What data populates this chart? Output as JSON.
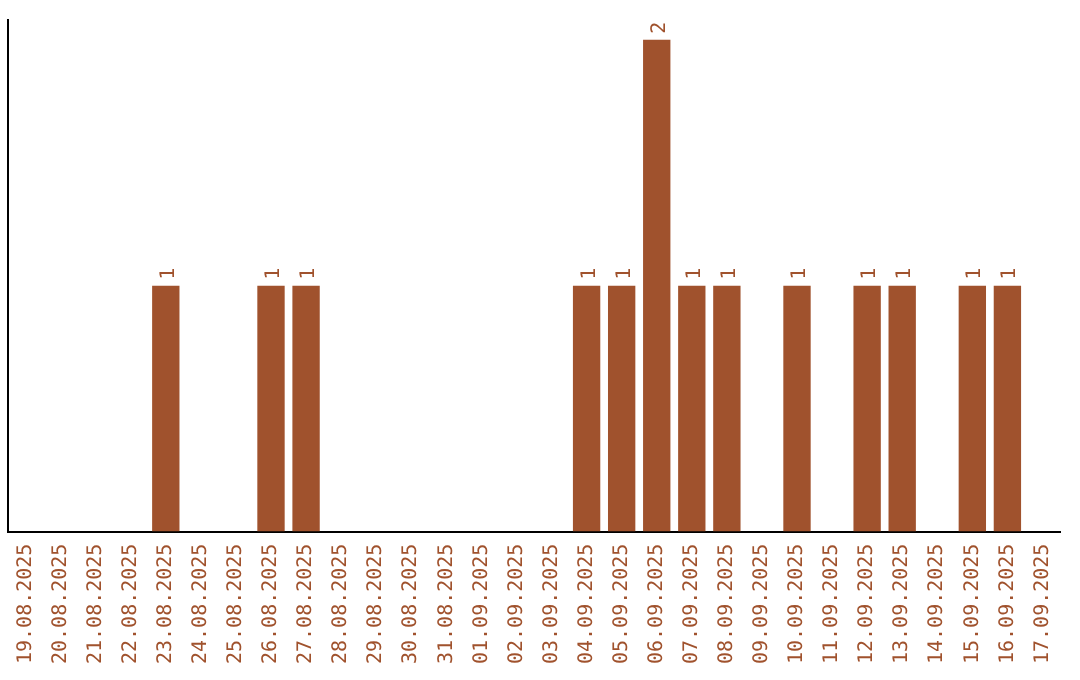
{
  "chart_data": {
    "type": "bar",
    "categories": [
      "19.08.2025",
      "20.08.2025",
      "21.08.2025",
      "22.08.2025",
      "23.08.2025",
      "24.08.2025",
      "25.08.2025",
      "26.08.2025",
      "27.08.2025",
      "28.08.2025",
      "29.08.2025",
      "30.08.2025",
      "31.08.2025",
      "01.09.2025",
      "02.09.2025",
      "03.09.2025",
      "04.09.2025",
      "05.09.2025",
      "06.09.2025",
      "07.09.2025",
      "08.09.2025",
      "09.09.2025",
      "10.09.2025",
      "11.09.2025",
      "12.09.2025",
      "13.09.2025",
      "14.09.2025",
      "15.09.2025",
      "16.09.2025",
      "17.09.2025"
    ],
    "values": [
      0,
      0,
      0,
      0,
      1,
      0,
      0,
      1,
      1,
      0,
      0,
      0,
      0,
      0,
      0,
      0,
      1,
      1,
      2,
      1,
      1,
      0,
      1,
      0,
      1,
      1,
      0,
      1,
      1,
      0
    ],
    "value_labels": [
      null,
      null,
      null,
      null,
      "1",
      null,
      null,
      "1",
      "1",
      null,
      null,
      null,
      null,
      null,
      null,
      null,
      "1",
      "1",
      "2",
      "1",
      "1",
      null,
      "1",
      null,
      "1",
      "1",
      null,
      "1",
      "1",
      null
    ],
    "color": "#a0522d",
    "ylim": [
      0,
      2.08
    ],
    "tick_labels": "x",
    "grid": false,
    "legend": false
  }
}
